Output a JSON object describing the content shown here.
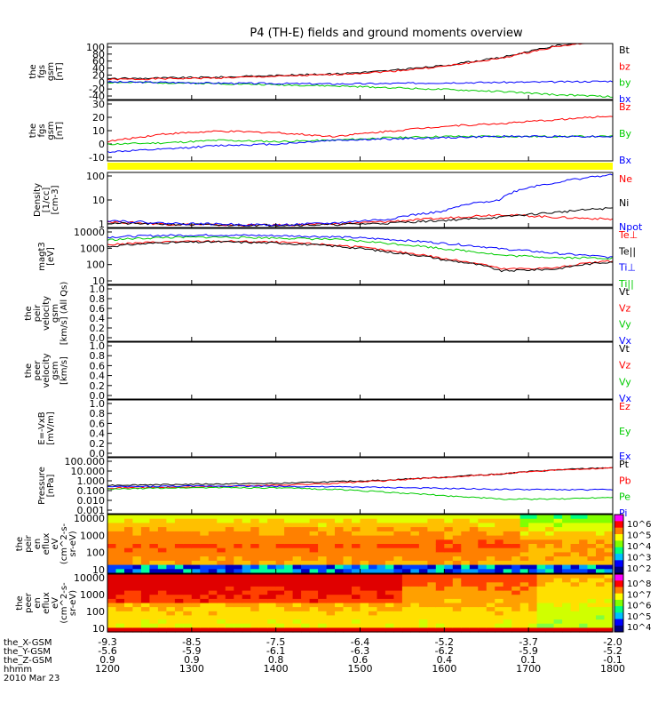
{
  "chart_data": {
    "type": "line",
    "title": "P4 (TH-E) fields and ground moments overview",
    "panels": [
      {
        "id": "fgs_gsm",
        "ylabel": [
          "the",
          "fgs",
          "gsm",
          "[nT]"
        ],
        "ticks": [
          "100",
          "80",
          "60",
          "40",
          "20",
          "0",
          "-20",
          "-40"
        ],
        "ylim": [
          -40,
          100
        ],
        "series": [
          {
            "name": "Bt",
            "color": "#000000",
            "values": [
              12,
              14,
              16,
              20,
              24,
              32,
              45,
              65,
              95,
              110
            ]
          },
          {
            "name": "bz",
            "color": "#ff0000",
            "values": [
              10,
              12,
              14,
              18,
              22,
              30,
              43,
              63,
              93,
              108
            ]
          },
          {
            "name": "by",
            "color": "#00cc00",
            "values": [
              3,
              2,
              0,
              -3,
              -6,
              -10,
              -15,
              -20,
              -28,
              -33
            ]
          },
          {
            "name": "bx",
            "color": "#0000ff",
            "values": [
              4,
              3,
              1,
              0,
              -1,
              0,
              2,
              3,
              4,
              6
            ]
          }
        ]
      },
      {
        "id": "fgs_gsm_zoom",
        "ylabel": [
          "the",
          "fgs",
          "gsm",
          "[nT]"
        ],
        "ticks": [
          "30",
          "20",
          "10",
          "0",
          "-10"
        ],
        "ylim": [
          -15,
          32
        ],
        "series": [
          {
            "name": "Bz",
            "color": "#ff0000",
            "values": [
              0,
              6,
              8,
              7,
              4,
              8,
              12,
              14,
              17,
              20
            ]
          },
          {
            "name": "By",
            "color": "#00cc00",
            "values": [
              -2,
              -1,
              1,
              0,
              1,
              3,
              4,
              4,
              4,
              4
            ]
          },
          {
            "name": "Bx",
            "color": "#0000ff",
            "values": [
              -8,
              -6,
              -3,
              -2,
              1,
              2,
              3,
              4,
              4,
              4
            ]
          }
        ]
      },
      {
        "id": "density",
        "ylabel": [
          "Density",
          "[1/cc]",
          "[cm-3]"
        ],
        "ticks": [
          "100",
          "10",
          "1"
        ],
        "log": true,
        "ylim": [
          0.3,
          200
        ],
        "series": [
          {
            "name": "Ne",
            "color": "#ff0000",
            "values": [
              0.6,
              0.45,
              0.4,
              0.4,
              0.45,
              0.6,
              0.9,
              1.4,
              1.0,
              0.8
            ]
          },
          {
            "name": "Ni",
            "color": "#000000",
            "values": [
              0.5,
              0.45,
              0.4,
              0.4,
              0.42,
              0.5,
              0.7,
              1.0,
              1.8,
              3.0
            ]
          },
          {
            "name": "Npot",
            "color": "#0000ff",
            "values": [
              0.7,
              0.5,
              0.45,
              0.4,
              0.5,
              0.8,
              2.0,
              8.0,
              60,
              150
            ]
          }
        ]
      },
      {
        "id": "temp",
        "ylabel": [
          "magt3",
          "[eV]"
        ],
        "ticks": [
          "10000",
          "1000",
          "100",
          "10"
        ],
        "log": true,
        "ylim": [
          10,
          12000
        ],
        "series": [
          {
            "name": "Te⊥",
            "color": "#ff0000",
            "values": [
              1500,
              2200,
              2400,
              2100,
              1500,
              700,
              250,
              70,
              80,
              200
            ]
          },
          {
            "name": "Te||",
            "color": "#000000",
            "values": [
              1200,
              2000,
              2200,
              1900,
              1300,
              600,
              220,
              55,
              70,
              180
            ]
          },
          {
            "name": "Ti⊥",
            "color": "#0000ff",
            "values": [
              4000,
              5000,
              5200,
              4800,
              4200,
              3000,
              1800,
              900,
              500,
              300
            ]
          },
          {
            "name": "Ti||",
            "color": "#00cc00",
            "values": [
              2800,
              3800,
              4000,
              3600,
              3000,
              1800,
              900,
              400,
              300,
              280
            ]
          }
        ]
      },
      {
        "id": "peir_velocity",
        "ylabel": [
          "the",
          "peir",
          "velocity",
          "gsm",
          "[km/s] (All Qs)"
        ],
        "ticks": [
          "1.0",
          "0.8",
          "0.6",
          "0.4",
          "0.2",
          "0.0"
        ],
        "ylim": [
          0,
          1
        ],
        "series": [
          {
            "name": "Vt",
            "color": "#000000",
            "values": []
          },
          {
            "name": "Vz",
            "color": "#ff0000",
            "values": []
          },
          {
            "name": "Vy",
            "color": "#00cc00",
            "values": []
          },
          {
            "name": "Vx",
            "color": "#0000ff",
            "values": []
          }
        ]
      },
      {
        "id": "peer_velocity",
        "ylabel": [
          "the",
          "peer",
          "velocity",
          "gsm",
          "[km/s]"
        ],
        "ticks": [
          "1.0",
          "0.8",
          "0.6",
          "0.4",
          "0.2",
          "0.0"
        ],
        "ylim": [
          0,
          1
        ],
        "series": [
          {
            "name": "Vt",
            "color": "#000000",
            "values": []
          },
          {
            "name": "Vz",
            "color": "#ff0000",
            "values": []
          },
          {
            "name": "Vy",
            "color": "#00cc00",
            "values": []
          },
          {
            "name": "Vx",
            "color": "#0000ff",
            "values": []
          }
        ]
      },
      {
        "id": "efield",
        "ylabel": [
          "E=-VxB",
          "[mV/m]"
        ],
        "ticks": [
          "1.0",
          "0.8",
          "0.6",
          "0.4",
          "0.2",
          "0.0"
        ],
        "ylim": [
          0,
          1
        ],
        "series": [
          {
            "name": "Ez",
            "color": "#ff0000",
            "values": []
          },
          {
            "name": "Ey",
            "color": "#00cc00",
            "values": []
          },
          {
            "name": "Ex",
            "color": "#0000ff",
            "values": []
          }
        ]
      },
      {
        "id": "pressure",
        "ylabel": [
          "Pressure",
          "[nPa]"
        ],
        "ticks": [
          "100.000",
          "10.000",
          "1.000",
          "0.100",
          "0.010",
          "0.001"
        ],
        "log": true,
        "ylim": [
          0.001,
          100
        ],
        "series": [
          {
            "name": "Pt",
            "color": "#000000",
            "values": [
              0.35,
              0.4,
              0.45,
              0.5,
              0.7,
              1.0,
              1.8,
              3.5,
              8,
              13
            ]
          },
          {
            "name": "Pb",
            "color": "#ff0000",
            "values": [
              0.2,
              0.22,
              0.27,
              0.35,
              0.5,
              0.9,
              1.7,
              3.4,
              7.8,
              12.5
            ]
          },
          {
            "name": "Pe",
            "color": "#00cc00",
            "values": [
              0.15,
              0.2,
              0.22,
              0.2,
              0.15,
              0.08,
              0.04,
              0.02,
              0.02,
              0.03
            ]
          },
          {
            "name": "Pi",
            "color": "#0000ff",
            "values": [
              0.25,
              0.28,
              0.3,
              0.28,
              0.25,
              0.22,
              0.18,
              0.15,
              0.14,
              0.14
            ]
          }
        ]
      },
      {
        "id": "peir_eflux",
        "type": "heatmap",
        "ylabel": [
          "the",
          "peir",
          "en",
          "eflux",
          "eV",
          "(cm^2-s-",
          "sr-eV)"
        ],
        "ticks": [
          "10000",
          "1000",
          "100",
          "10"
        ],
        "colorbar_ticks": [
          "10^6",
          "10^5",
          "10^4",
          "10^3",
          "10^2"
        ]
      },
      {
        "id": "peer_eflux",
        "type": "heatmap",
        "ylabel": [
          "the",
          "peer",
          "en",
          "eflux",
          "eV",
          "(cm^2-s-",
          "sr-eV)"
        ],
        "ticks": [
          "10000",
          "1000",
          "100",
          "10"
        ],
        "colorbar_ticks": [
          "10^8",
          "10^7",
          "10^6",
          "10^5",
          "10^4"
        ]
      }
    ],
    "x_axis": {
      "rows": [
        {
          "label": "the_X-GSM",
          "values": [
            "-9.3",
            "-8.5",
            "-7.5",
            "-6.4",
            "-5.2",
            "-3.7",
            "-2.0"
          ]
        },
        {
          "label": "the_Y-GSM",
          "values": [
            "-5.6",
            "-5.9",
            "-6.1",
            "-6.3",
            "-6.2",
            "-5.9",
            "-5.2"
          ]
        },
        {
          "label": "the_Z-GSM",
          "values": [
            "0.9",
            "0.9",
            "0.8",
            "0.6",
            "0.4",
            "0.1",
            "-0.1"
          ]
        },
        {
          "label": "hhmm",
          "values": [
            "1200",
            "1300",
            "1400",
            "1500",
            "1600",
            "1700",
            "1800"
          ]
        }
      ],
      "date": "2010 Mar 23"
    }
  }
}
